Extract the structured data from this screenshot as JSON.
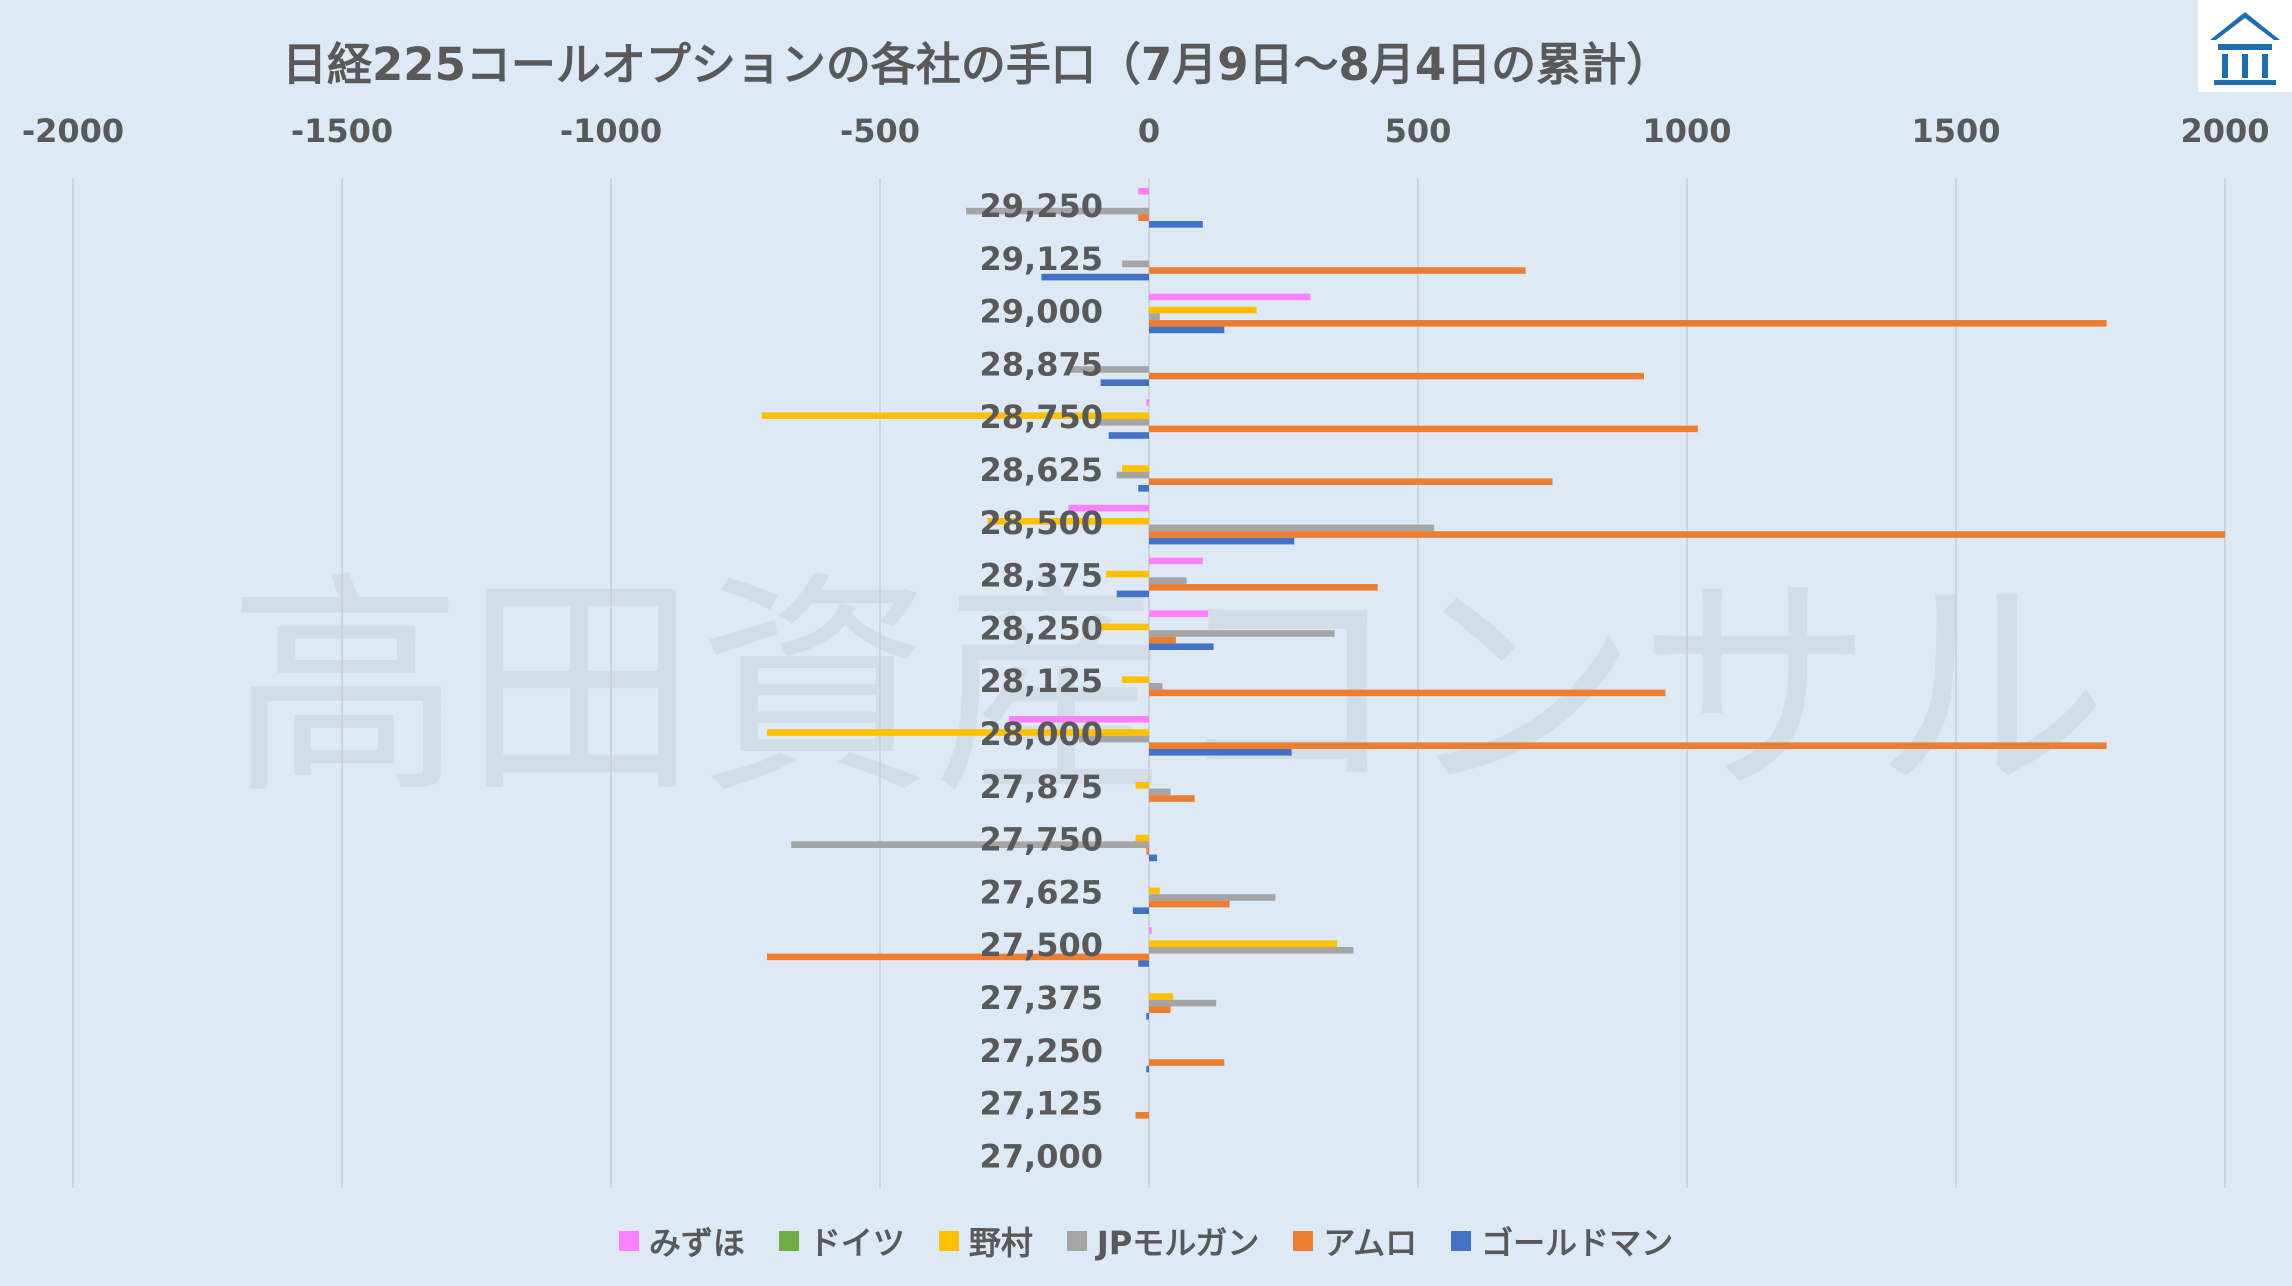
{
  "chart_data": {
    "type": "bar",
    "orientation": "horizontal",
    "title": "日経225コールオプションの各社の手口（7月9日～8月4日の累計）",
    "watermark": "高田資産コンサル",
    "xlim": [
      -2000,
      2000
    ],
    "xticks": [
      -2000,
      -1500,
      -1000,
      -500,
      0,
      500,
      1000,
      1500,
      2000
    ],
    "x_axis_position": "top",
    "grid": true,
    "legend_position": "bottom",
    "categories": [
      "29,250",
      "29,125",
      "29,000",
      "28,875",
      "28,750",
      "28,625",
      "28,500",
      "28,375",
      "28,250",
      "28,125",
      "28,000",
      "27,875",
      "27,750",
      "27,625",
      "27,500",
      "27,375",
      "27,250",
      "27,125",
      "27,000"
    ],
    "series": [
      {
        "name": "みずほ",
        "color": "#ff80ff",
        "values": [
          -20,
          0,
          300,
          0,
          -5,
          0,
          -150,
          100,
          110,
          0,
          -260,
          0,
          0,
          0,
          5,
          0,
          0,
          0,
          0
        ]
      },
      {
        "name": "ドイツ",
        "color": "#70ad47",
        "values": [
          0,
          0,
          0,
          0,
          0,
          0,
          0,
          0,
          0,
          0,
          0,
          0,
          0,
          0,
          0,
          0,
          0,
          0,
          0
        ]
      },
      {
        "name": "野村",
        "color": "#ffc000",
        "values": [
          0,
          0,
          200,
          0,
          -720,
          -50,
          -300,
          -80,
          -90,
          -50,
          -710,
          -25,
          -25,
          20,
          350,
          45,
          0,
          0,
          0
        ]
      },
      {
        "name": "JPモルガン",
        "color": "#a5a5a5",
        "values": [
          -340,
          -50,
          20,
          -150,
          -100,
          -60,
          530,
          70,
          345,
          25,
          -130,
          40,
          -665,
          235,
          380,
          125,
          0,
          0,
          0
        ]
      },
      {
        "name": "アムロ",
        "color": "#ed7d31",
        "values": [
          -20,
          700,
          1780,
          920,
          1020,
          750,
          2000,
          425,
          50,
          960,
          1780,
          85,
          -5,
          150,
          -710,
          40,
          140,
          -25,
          0
        ]
      },
      {
        "name": "ゴールドマン",
        "color": "#4472c4",
        "values": [
          100,
          -200,
          140,
          -90,
          -75,
          -20,
          270,
          -60,
          120,
          0,
          265,
          0,
          15,
          -30,
          -20,
          -5,
          -5,
          0,
          0
        ]
      }
    ]
  }
}
